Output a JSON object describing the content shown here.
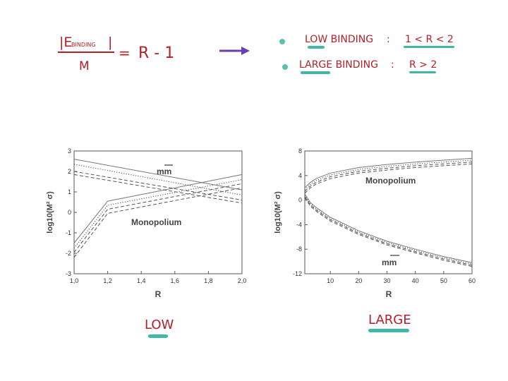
{
  "annotations": {
    "formula": {
      "numerator": "|E",
      "numerator_sub": "BINDING",
      "numerator_end": "|",
      "denominator": "M",
      "equals": "=",
      "rhs": "R - 1"
    },
    "bullets": [
      {
        "label": "LOW BINDING",
        "sep": ":",
        "value": "1 < R < 2"
      },
      {
        "label": "LARGE BINDING",
        "sep": ":",
        "value": "R > 2"
      }
    ],
    "bottom_labels": [
      "LOW",
      "LARGE"
    ],
    "colors": {
      "ink_red": "#b3202a",
      "arrow_purple": "#6a3fb0",
      "highlight_teal": "#3fb8a8",
      "bullet_teal": "#5cc0ae"
    }
  },
  "chart_data": [
    {
      "type": "line",
      "xlabel": "R",
      "ylabel": "log10(M² σ)",
      "xlim": [
        1.0,
        2.0
      ],
      "ylim": [
        -3,
        3
      ],
      "xticks": [
        "1,0",
        "1,2",
        "1,4",
        "1,6",
        "1,8",
        "2,0"
      ],
      "yticks": [
        "-3",
        "-2",
        "-1",
        "0",
        "1",
        "2",
        "3"
      ],
      "annotations": [
        "mm",
        "Monopolium"
      ],
      "series": [
        {
          "style": "solid",
          "x": [
            1.0,
            1.2,
            2.0
          ],
          "y": [
            -1.5,
            0.55,
            1.85
          ]
        },
        {
          "style": "dotted",
          "x": [
            1.0,
            1.2,
            2.0
          ],
          "y": [
            -1.75,
            0.35,
            1.6
          ]
        },
        {
          "style": "dashed",
          "x": [
            1.0,
            1.2,
            2.0
          ],
          "y": [
            -1.95,
            0.15,
            1.4
          ]
        },
        {
          "style": "dashed",
          "x": [
            1.0,
            1.2,
            2.0
          ],
          "y": [
            -2.2,
            -0.05,
            1.2
          ]
        },
        {
          "style": "solid",
          "x": [
            1.0,
            2.0
          ],
          "y": [
            2.6,
            1.1
          ]
        },
        {
          "style": "dotted",
          "x": [
            1.0,
            2.0
          ],
          "y": [
            2.35,
            0.85
          ]
        },
        {
          "style": "dashed",
          "x": [
            1.0,
            2.0
          ],
          "y": [
            2.0,
            0.6
          ]
        },
        {
          "style": "dashed",
          "x": [
            1.0,
            2.0
          ],
          "y": [
            1.85,
            0.45
          ]
        }
      ]
    },
    {
      "type": "line",
      "xlabel": "R",
      "ylabel": "log10(M² σ)",
      "xlim": [
        1,
        60
      ],
      "ylim": [
        -12,
        8
      ],
      "xticks": [
        "10",
        "20",
        "30",
        "40",
        "50",
        "60"
      ],
      "yticks": [
        "-12",
        "-8",
        "-4",
        "0",
        "4",
        "8"
      ],
      "annotations": [
        "Monopolium",
        "mm"
      ],
      "series": [
        {
          "style": "solid",
          "x": [
            1,
            3,
            5,
            10,
            20,
            30,
            40,
            50,
            60
          ],
          "y": [
            2.0,
            2.9,
            3.5,
            4.4,
            5.3,
            5.8,
            6.2,
            6.5,
            6.8
          ]
        },
        {
          "style": "dotted",
          "x": [
            1,
            3,
            5,
            10,
            20,
            30,
            40,
            50,
            60
          ],
          "y": [
            1.7,
            2.6,
            3.2,
            4.1,
            5.0,
            5.5,
            5.9,
            6.2,
            6.5
          ]
        },
        {
          "style": "dashed",
          "x": [
            1,
            3,
            5,
            10,
            20,
            30,
            40,
            50,
            60
          ],
          "y": [
            1.4,
            2.3,
            2.9,
            3.8,
            4.7,
            5.2,
            5.6,
            5.9,
            6.2
          ]
        },
        {
          "style": "dashed",
          "x": [
            1,
            3,
            5,
            10,
            20,
            30,
            40,
            50,
            60
          ],
          "y": [
            1.1,
            2.0,
            2.6,
            3.5,
            4.4,
            4.9,
            5.3,
            5.6,
            5.9
          ]
        },
        {
          "style": "solid",
          "x": [
            1,
            3,
            5,
            10,
            20,
            30,
            40,
            50,
            60
          ],
          "y": [
            1.0,
            -0.4,
            -1.2,
            -2.8,
            -5.0,
            -6.7,
            -8.0,
            -9.2,
            -10.2
          ]
        },
        {
          "style": "dotted",
          "x": [
            1,
            3,
            5,
            10,
            20,
            30,
            40,
            50,
            60
          ],
          "y": [
            0.8,
            -0.6,
            -1.4,
            -3.0,
            -5.2,
            -6.9,
            -8.2,
            -9.4,
            -10.4
          ]
        },
        {
          "style": "dashed",
          "x": [
            1,
            3,
            5,
            10,
            20,
            30,
            40,
            50,
            60
          ],
          "y": [
            0.6,
            -0.8,
            -1.6,
            -3.2,
            -5.4,
            -7.1,
            -8.4,
            -9.6,
            -10.6
          ]
        },
        {
          "style": "dashed",
          "x": [
            1,
            3,
            5,
            10,
            20,
            30,
            40,
            50,
            60
          ],
          "y": [
            0.4,
            -1.0,
            -1.8,
            -3.4,
            -5.6,
            -7.3,
            -8.6,
            -9.8,
            -10.8
          ]
        }
      ]
    }
  ]
}
